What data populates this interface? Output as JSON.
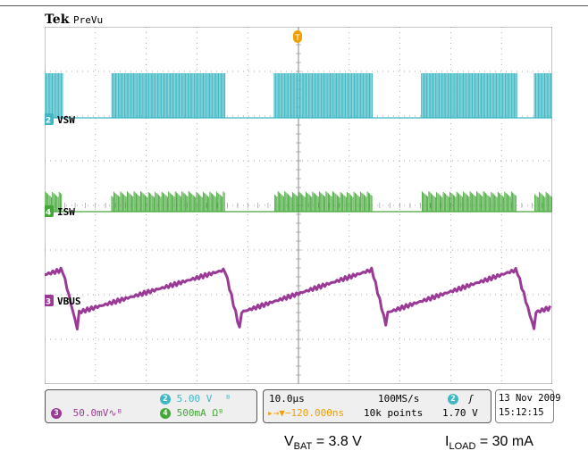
{
  "header": {
    "brand": "Tek",
    "mode": "PreVu"
  },
  "chart_data": {
    "type": "line",
    "title": "",
    "xlabel": "",
    "ylabel": "",
    "grid": true,
    "x_divisions": 10,
    "y_divisions": 8,
    "x_unit": "µs",
    "burst_cycle": {
      "active_ranges_us": [
        [
          0,
          3.5
        ],
        [
          13.2,
          35.5
        ],
        [
          45.2,
          64.5
        ],
        [
          74.2,
          93.0
        ],
        [
          96.5,
          100
        ]
      ],
      "period_us": 30.5
    },
    "series": [
      {
        "name": "VSW",
        "channel": "2",
        "color": "#3fb8c4",
        "scale": "5.00 V/div",
        "shape": "switching bursts"
      },
      {
        "name": "ISW",
        "channel": "4",
        "color": "#44a838",
        "scale": "500mA/div",
        "shape": "current pulses during bursts"
      },
      {
        "name": "VBUS",
        "channel": "3",
        "color": "#9b3a96",
        "scale": "50.0mV/div",
        "ripple_mV": 100,
        "shape": "sawtooth ripple"
      }
    ]
  },
  "channels": {
    "ch2": {
      "num": "2",
      "label": "VSW",
      "scale": "5.00 V",
      "suffix": "ᴮ"
    },
    "ch4": {
      "num": "4",
      "label": "ISW",
      "scale": "500mA",
      "suffix": "Ωᴮ"
    },
    "ch3": {
      "num": "3",
      "label": "VBUS",
      "scale": "50.0mV",
      "suffix": "∿ᴮ"
    }
  },
  "timebase": {
    "time_div": "10.0µs",
    "sample_rate": "100MS/s",
    "delay": "▸→▼−120.000ns",
    "record": "10k points"
  },
  "trigger": {
    "source": "2",
    "slope": "ʃ",
    "level": "1.70 V"
  },
  "datetime": {
    "date": "13 Nov 2009",
    "time": "15:12:15"
  },
  "trigger_marker": "T",
  "caption": {
    "vbat_label": "V",
    "vbat_sub": "BAT",
    "vbat_value": " = 3.8 V",
    "iload_label": "I",
    "iload_sub": "LOAD",
    "iload_value": " = 30 mA"
  },
  "colors": {
    "ch2": "#3fb8c4",
    "ch3": "#9b3a96",
    "ch4": "#44a838",
    "trigger": "#f0a000",
    "grid": "#8a8a8a"
  }
}
